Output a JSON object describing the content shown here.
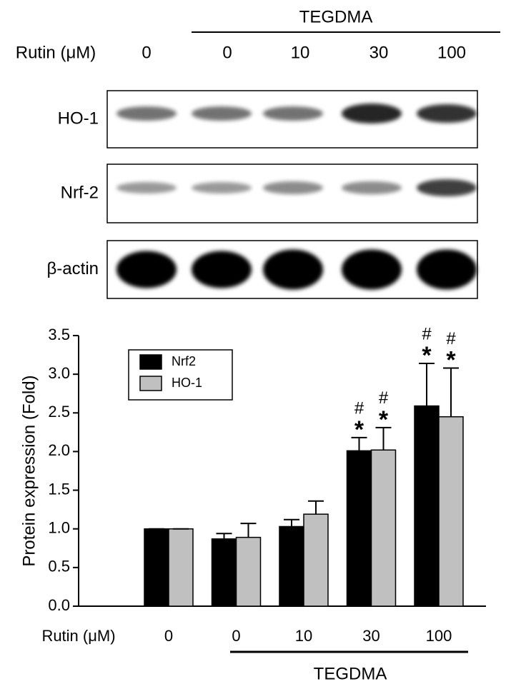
{
  "blot": {
    "treatment": "TEGDMA",
    "dose_label": "Rutin (μM)",
    "lanes": [
      "0",
      "0",
      "10",
      "30",
      "100"
    ],
    "rows": [
      "HO-1",
      "Nrf-2",
      "β-actin"
    ]
  },
  "chart_data": {
    "type": "bar",
    "y_label": "Protein expression (Fold)",
    "x_label": "Rutin (μM)",
    "group_label": "TEGDMA",
    "categories": [
      "0",
      "0",
      "10",
      "30",
      "100"
    ],
    "series": [
      {
        "name": "Nrf2",
        "color": "#000000",
        "values": [
          1.0,
          0.87,
          1.03,
          2.01,
          2.59
        ],
        "errors": [
          0,
          0.07,
          0.09,
          0.17,
          0.55
        ],
        "labels": [
          [],
          [],
          [],
          [
            "#",
            "*"
          ],
          [
            "#",
            "*"
          ]
        ]
      },
      {
        "name": "HO-1",
        "color": "#c0c0c0",
        "values": [
          1.0,
          0.89,
          1.19,
          2.02,
          2.45
        ],
        "errors": [
          0,
          0.18,
          0.17,
          0.29,
          0.63
        ],
        "labels": [
          [],
          [],
          [],
          [
            "#",
            "*"
          ],
          [
            "#",
            "*"
          ]
        ]
      }
    ],
    "ylim": [
      0,
      3.5
    ],
    "yticks": [
      {
        "value": 0,
        "label": "0.0"
      },
      0.5,
      {
        "value": 1,
        "label": "1.0"
      },
      1.5,
      {
        "value": 2,
        "label": "2.0"
      },
      2.5,
      {
        "value": 3,
        "label": "3.0"
      },
      3.5
    ],
    "legend": "upper left"
  }
}
